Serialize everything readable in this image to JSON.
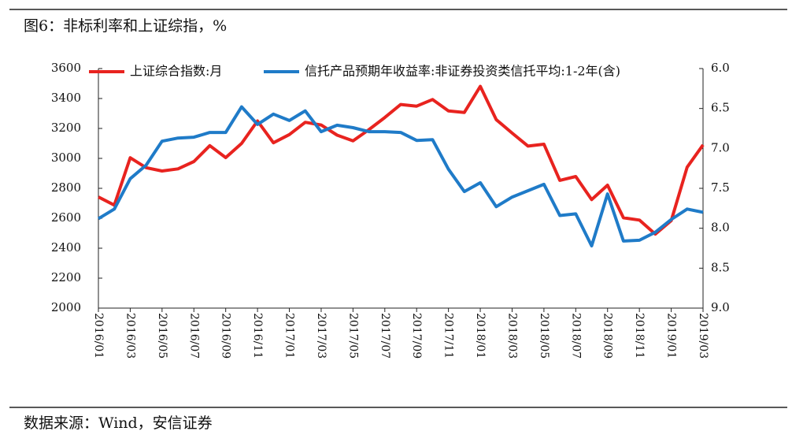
{
  "chart_data": {
    "type": "line",
    "title": "图6：非标利率和上证综指，%",
    "source": "数据来源：Wind，安信证券",
    "legend": "top",
    "categories": [
      "2016/01",
      null,
      "2016/03",
      null,
      "2016/05",
      null,
      "2016/07",
      null,
      "2016/09",
      null,
      "2016/11",
      null,
      "2017/01",
      null,
      "2017/03",
      null,
      "2017/05",
      null,
      "2017/07",
      null,
      "2017/09",
      null,
      "2017/11",
      null,
      "2018/01",
      null,
      "2018/03",
      null,
      "2018/05",
      null,
      "2018/07",
      null,
      "2018/09",
      null,
      "2018/11",
      null,
      "2019/01",
      null,
      "2019/03"
    ],
    "series": [
      {
        "name": "上证综合指数:月",
        "color": "#e8231f",
        "values": [
          2742,
          2688,
          3004,
          2938,
          2916,
          2930,
          2979,
          3085,
          3005,
          3100,
          3250,
          3104,
          3159,
          3241,
          3223,
          3155,
          3117,
          3192,
          3273,
          3360,
          3349,
          3393,
          3317,
          3307,
          3481,
          3259,
          3169,
          3082,
          3095,
          2853,
          2879,
          2725,
          2821,
          2603,
          2588,
          2494,
          2584,
          2941,
          3090
        ]
      },
      {
        "name": "信托产品预期年收益率:非证券投资类信托平均:1-2年(含)",
        "color": "#1f7bc8",
        "axis": "y2",
        "values": [
          7.88,
          7.76,
          7.38,
          7.21,
          6.91,
          6.87,
          6.86,
          6.8,
          6.8,
          6.48,
          6.7,
          6.57,
          6.65,
          6.53,
          6.79,
          6.71,
          6.74,
          6.79,
          6.79,
          6.8,
          6.9,
          6.89,
          7.26,
          7.54,
          7.43,
          7.73,
          7.61,
          7.53,
          7.45,
          7.84,
          7.82,
          8.22,
          7.57,
          8.16,
          8.15,
          8.05,
          7.89,
          7.76,
          7.8
        ]
      }
    ],
    "ylim": [
      2000,
      3600
    ],
    "yticks": [
      2000,
      2200,
      2400,
      2600,
      2800,
      3000,
      3200,
      3400,
      3600
    ],
    "y2lim": [
      9,
      6
    ],
    "y2ticks": [
      {
        "value": 9,
        "label": "9.0"
      },
      {
        "value": 8.5,
        "label": "8.5"
      },
      {
        "value": 8,
        "label": "8.0"
      },
      {
        "value": 7.5,
        "label": "7.5"
      },
      {
        "value": 7,
        "label": "7.0"
      },
      {
        "value": 6.5,
        "label": "6.5"
      },
      {
        "value": 6,
        "label": "6.0"
      }
    ]
  }
}
